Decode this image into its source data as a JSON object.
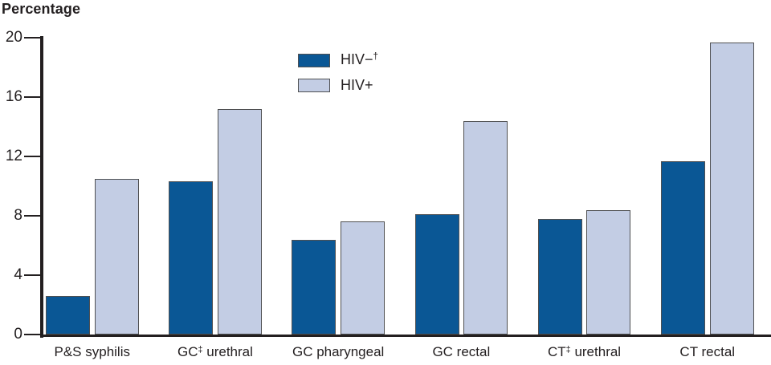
{
  "page": {
    "title": "Percentage"
  },
  "legend": {
    "items": [
      {
        "label": "HIV−†",
        "color": "#0a5795"
      },
      {
        "label": "HIV+",
        "color": "#c3cde4"
      }
    ]
  },
  "colors": {
    "axis": "#231f20",
    "text": "#231f20",
    "bar_border": "#4f5052",
    "hiv_negative": "#0a5795",
    "hiv_positive": "#c3cde4"
  },
  "chart_data": {
    "type": "bar",
    "title": "Percentage",
    "categories": [
      "P&S syphilis",
      "GC‡ urethral",
      "GC pharyngeal",
      "GC rectal",
      "CT‡ urethral",
      "CT rectal"
    ],
    "series": [
      {
        "name": "HIV−†",
        "color": "#0a5795",
        "values": [
          2.6,
          10.3,
          6.4,
          8.1,
          7.8,
          11.7
        ]
      },
      {
        "name": "HIV+",
        "color": "#c3cde4",
        "values": [
          10.5,
          15.2,
          7.6,
          14.4,
          8.4,
          19.7
        ]
      }
    ],
    "xlabel": "",
    "ylabel": "Percentage",
    "y_ticks": [
      0,
      4,
      8,
      12,
      16,
      20
    ],
    "ylim": [
      0,
      20
    ],
    "grid": false,
    "legend_position": "upper-center-left"
  }
}
